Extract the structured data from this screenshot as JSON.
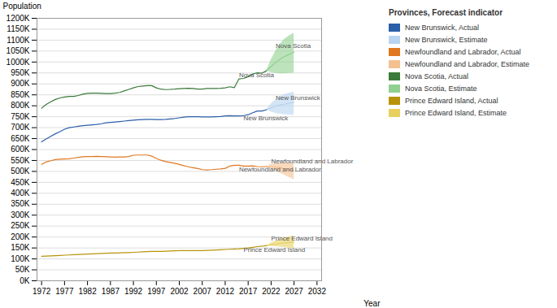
{
  "chart_data": {
    "type": "line",
    "title": "Provinces, Forecast indicator",
    "xlabel": "Year",
    "ylabel": "Population",
    "xlim": [
      1971,
      2033
    ],
    "xticks": [
      1972,
      1977,
      1982,
      1987,
      1992,
      1997,
      2002,
      2007,
      2012,
      2017,
      2022,
      2027,
      2032
    ],
    "ylim": [
      0,
      1200000
    ],
    "yticks": [
      {
        "value": 0,
        "label": "0K"
      },
      {
        "value": 50000,
        "label": "50K"
      },
      {
        "value": 100000,
        "label": "100K"
      },
      {
        "value": 150000,
        "label": "150K"
      },
      {
        "value": 200000,
        "label": "200K"
      },
      {
        "value": 250000,
        "label": "250K"
      },
      {
        "value": 300000,
        "label": "300K"
      },
      {
        "value": 350000,
        "label": "350K"
      },
      {
        "value": 400000,
        "label": "400K"
      },
      {
        "value": 450000,
        "label": "450K"
      },
      {
        "value": 500000,
        "label": "500K"
      },
      {
        "value": 550000,
        "label": "550K"
      },
      {
        "value": 600000,
        "label": "600K"
      },
      {
        "value": 650000,
        "label": "650K"
      },
      {
        "value": 700000,
        "label": "700K"
      },
      {
        "value": 750000,
        "label": "750K"
      },
      {
        "value": 800000,
        "label": "800K"
      },
      {
        "value": 850000,
        "label": "850K"
      },
      {
        "value": 900000,
        "label": "900K"
      },
      {
        "value": 950000,
        "label": "950K"
      },
      {
        "value": 1000000,
        "label": "1000K"
      },
      {
        "value": 1050000,
        "label": "1050K"
      },
      {
        "value": 1100000,
        "label": "1100K"
      },
      {
        "value": 1150000,
        "label": "1150K"
      },
      {
        "value": 1200000,
        "label": "1200K"
      }
    ],
    "grid": true,
    "legend": "right",
    "series": [
      {
        "name": "New Brunswick, Actual",
        "color": "#2b5fa8",
        "x": [
          1972,
          1973,
          1974,
          1975,
          1976,
          1977,
          1978,
          1979,
          1980,
          1981,
          1982,
          1983,
          1984,
          1985,
          1986,
          1987,
          1988,
          1989,
          1990,
          1991,
          1992,
          1993,
          1994,
          1995,
          1996,
          1997,
          1998,
          1999,
          2000,
          2001,
          2002,
          2003,
          2004,
          2005,
          2006,
          2007,
          2008,
          2009,
          2010,
          2011,
          2012,
          2013,
          2014,
          2015,
          2016,
          2017,
          2018,
          2019,
          2020,
          2021
        ],
        "values": [
          635000,
          648000,
          660000,
          672000,
          682000,
          693000,
          700000,
          703000,
          706000,
          709000,
          711000,
          713000,
          715000,
          718000,
          722000,
          724000,
          726000,
          728000,
          730000,
          732000,
          734000,
          736000,
          737000,
          738000,
          738000,
          737000,
          737000,
          738000,
          740000,
          742000,
          745000,
          748000,
          750000,
          750000,
          750000,
          749000,
          749000,
          749000,
          750000,
          751000,
          754000,
          755000,
          754000,
          754000,
          755000,
          759000,
          768000,
          776000,
          776000,
          782000
        ]
      },
      {
        "name": "New Brunswick, Estimate",
        "color": "#b8d4f0",
        "x": [
          2021,
          2022,
          2023,
          2024,
          2025,
          2026,
          2027
        ],
        "values": [
          782000,
          790000,
          798000,
          804000,
          808000,
          812000,
          815000
        ],
        "upper": [
          782000,
          808000,
          828000,
          842000,
          852000,
          858000,
          863000
        ],
        "lower": [
          782000,
          772000,
          765000,
          762000,
          760000,
          758000,
          756000
        ]
      },
      {
        "name": "Newfoundland and Labrador, Actual",
        "color": "#e07820",
        "x": [
          1972,
          1973,
          1974,
          1975,
          1976,
          1977,
          1978,
          1979,
          1980,
          1981,
          1982,
          1983,
          1984,
          1985,
          1986,
          1987,
          1988,
          1989,
          1990,
          1991,
          1992,
          1993,
          1994,
          1995,
          1996,
          1997,
          1998,
          1999,
          2000,
          2001,
          2002,
          2003,
          2004,
          2005,
          2006,
          2007,
          2008,
          2009,
          2010,
          2011,
          2012,
          2013,
          2014,
          2015,
          2016,
          2017,
          2018,
          2019,
          2020,
          2021
        ],
        "values": [
          532000,
          543000,
          549000,
          554000,
          556000,
          557000,
          558000,
          561000,
          564000,
          567000,
          568000,
          568000,
          569000,
          568000,
          567000,
          566000,
          565000,
          566000,
          566000,
          568000,
          574000,
          575000,
          575000,
          575000,
          570000,
          559000,
          551000,
          545000,
          541000,
          537000,
          532000,
          526000,
          521000,
          517000,
          513000,
          508000,
          507000,
          508000,
          510000,
          511000,
          514000,
          524000,
          528000,
          528000,
          524000,
          524000,
          525000,
          522000,
          521000,
          522000
        ]
      },
      {
        "name": "Newfoundland and Labrador, Estimate",
        "color": "#f5c090",
        "x": [
          2021,
          2022,
          2023,
          2024,
          2025,
          2026,
          2027
        ],
        "values": [
          522000,
          522000,
          520000,
          516000,
          512000,
          508000,
          503000
        ],
        "upper": [
          522000,
          532000,
          536000,
          538000,
          538000,
          536000,
          533000
        ],
        "lower": [
          522000,
          512000,
          503000,
          492000,
          482000,
          472000,
          462000
        ]
      },
      {
        "name": "Nova Scotia, Actual",
        "color": "#3a7a3a",
        "x": [
          1972,
          1973,
          1974,
          1975,
          1976,
          1977,
          1978,
          1979,
          1980,
          1981,
          1982,
          1983,
          1984,
          1985,
          1986,
          1987,
          1988,
          1989,
          1990,
          1991,
          1992,
          1993,
          1994,
          1995,
          1996,
          1997,
          1998,
          1999,
          2000,
          2001,
          2002,
          2003,
          2004,
          2005,
          2006,
          2007,
          2008,
          2009,
          2010,
          2011,
          2012,
          2013,
          2014,
          2015,
          2016,
          2017,
          2018,
          2019,
          2020,
          2021
        ],
        "values": [
          789000,
          806000,
          818000,
          829000,
          836000,
          840000,
          843000,
          843000,
          847000,
          853000,
          857000,
          858000,
          858000,
          857000,
          856000,
          856000,
          858000,
          861000,
          868000,
          875000,
          882000,
          888000,
          890000,
          892000,
          892000,
          882000,
          876000,
          874000,
          875000,
          876000,
          878000,
          879000,
          880000,
          879000,
          876000,
          876000,
          879000,
          879000,
          879000,
          880000,
          882000,
          887000,
          883000,
          923000,
          925000,
          933000,
          945000,
          951000,
          949000,
          960000
        ]
      },
      {
        "name": "Nova Scotia, Estimate",
        "color": "#90d090",
        "x": [
          2021,
          2022,
          2023,
          2024,
          2025,
          2026,
          2027
        ],
        "values": [
          960000,
          980000,
          998000,
          1014000,
          1026000,
          1036000,
          1044000
        ],
        "upper": [
          960000,
          1010000,
          1050000,
          1082000,
          1105000,
          1120000,
          1132000
        ],
        "lower": [
          960000,
          952000,
          948000,
          946000,
          946000,
          948000,
          950000
        ]
      },
      {
        "name": "Prince Edward Island, Actual",
        "color": "#b8930a",
        "x": [
          1972,
          1973,
          1974,
          1975,
          1976,
          1977,
          1978,
          1979,
          1980,
          1981,
          1982,
          1983,
          1984,
          1985,
          1986,
          1987,
          1988,
          1989,
          1990,
          1991,
          1992,
          1993,
          1994,
          1995,
          1996,
          1997,
          1998,
          1999,
          2000,
          2001,
          2002,
          2003,
          2004,
          2005,
          2006,
          2007,
          2008,
          2009,
          2010,
          2011,
          2012,
          2013,
          2014,
          2015,
          2016,
          2017,
          2018,
          2019,
          2020,
          2021
        ],
        "values": [
          112000,
          113000,
          114000,
          115000,
          116000,
          117000,
          118000,
          119000,
          120000,
          121000,
          122000,
          123000,
          124000,
          125000,
          126000,
          127000,
          127000,
          128000,
          129000,
          129000,
          130000,
          131000,
          132000,
          133000,
          134000,
          134000,
          134000,
          135000,
          136000,
          137000,
          138000,
          138000,
          138000,
          138000,
          138000,
          138000,
          139000,
          140000,
          141000,
          142000,
          143000,
          144000,
          145000,
          146000,
          148000,
          150000,
          153000,
          156000,
          158000,
          161000
        ]
      },
      {
        "name": "Prince Edward Island, Estimate",
        "color": "#e8d060",
        "x": [
          2021,
          2022,
          2023,
          2024,
          2025,
          2026,
          2027
        ],
        "values": [
          161000,
          165000,
          168000,
          171000,
          173000,
          175000,
          177000
        ],
        "upper": [
          161000,
          172000,
          182000,
          190000,
          196000,
          201000,
          205000
        ],
        "lower": [
          161000,
          158000,
          156000,
          154000,
          152000,
          150000,
          148000
        ]
      }
    ],
    "annotations": [
      {
        "text": "Nova Scotia",
        "x": 2015,
        "y": 940000
      },
      {
        "text": "Nova Scotia",
        "x": 2023,
        "y": 1075000
      },
      {
        "text": "New Brunswick",
        "x": 2016,
        "y": 742000
      },
      {
        "text": "New Brunswick",
        "x": 2023,
        "y": 835000
      },
      {
        "text": "Newfoundland and Labrador",
        "x": 2015,
        "y": 510000
      },
      {
        "text": "Newfoundland and Labrador",
        "x": 2022,
        "y": 548000
      },
      {
        "text": "Prince Edward Island",
        "x": 2016,
        "y": 140000
      },
      {
        "text": "Prince Edward Island",
        "x": 2022,
        "y": 195000
      }
    ]
  }
}
